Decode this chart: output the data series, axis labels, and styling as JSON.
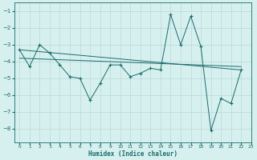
{
  "title": "",
  "xlabel": "Humidex (Indice chaleur)",
  "xlim": [
    -0.5,
    23
  ],
  "ylim": [
    -8.8,
    -0.5
  ],
  "yticks": [
    -8,
    -7,
    -6,
    -5,
    -4,
    -3,
    -2,
    -1
  ],
  "xticks": [
    0,
    1,
    2,
    3,
    4,
    5,
    6,
    7,
    8,
    9,
    10,
    11,
    12,
    13,
    14,
    15,
    16,
    17,
    18,
    19,
    20,
    21,
    22,
    23
  ],
  "bg_color": "#d6f0ef",
  "grid_color": "#b8d8d8",
  "line_color": "#1a6b6b",
  "data_x": [
    0,
    1,
    2,
    3,
    4,
    5,
    6,
    7,
    8,
    9,
    10,
    11,
    12,
    13,
    14,
    15,
    16,
    17,
    18,
    19,
    20,
    21,
    22
  ],
  "data_y": [
    -3.3,
    -4.3,
    -3.0,
    -3.5,
    -4.2,
    -4.9,
    -5.0,
    -6.3,
    -5.3,
    -4.2,
    -4.2,
    -4.9,
    -4.7,
    -4.4,
    -4.5,
    -1.2,
    -3.0,
    -1.3,
    -3.1,
    -8.1,
    -6.2,
    -6.5,
    -4.5
  ],
  "trend1_x": [
    0,
    22
  ],
  "trend1_y": [
    -3.3,
    -4.5
  ],
  "trend2_x": [
    0,
    22
  ],
  "trend2_y": [
    -3.8,
    -4.3
  ]
}
